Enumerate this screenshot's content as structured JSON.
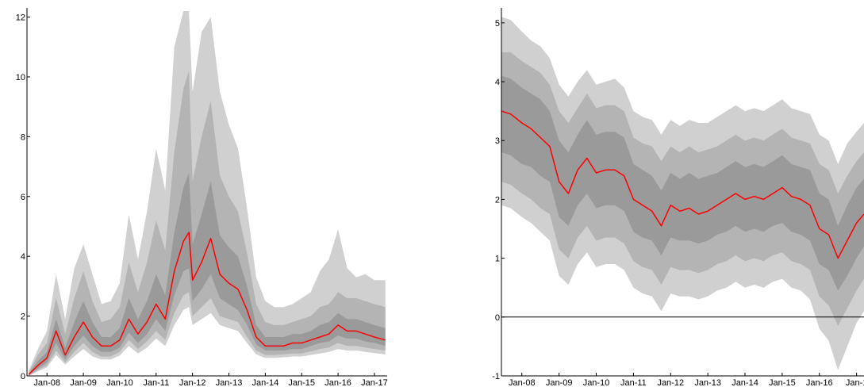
{
  "chart_data": [
    {
      "type": "area",
      "title": "",
      "xlabel": "",
      "ylabel": "",
      "x_tick_labels": [
        "Jan-08",
        "Jan-09",
        "Jan-10",
        "Jan-11",
        "Jan-12",
        "Jan-13",
        "Jan-14",
        "Jan-15",
        "Jan-16",
        "Jan-17"
      ],
      "x_ticks": [
        2008,
        2009,
        2010,
        2011,
        2012,
        2013,
        2014,
        2015,
        2016,
        2017
      ],
      "xlim": [
        2007.45,
        2017.35
      ],
      "ylim": [
        0,
        12.2
      ],
      "y_ticks": [
        0,
        2,
        4,
        6,
        8,
        10,
        12
      ],
      "y_tick_labels": [
        "0",
        "2",
        "4",
        "6",
        "8",
        "10",
        "12"
      ],
      "grid": false,
      "colors": {
        "median": "#ff0000",
        "band_outer": "#d0d0d0",
        "band_mid": "#b4b4b4",
        "band_inner": "#9a9a9a"
      },
      "x": [
        2007.5,
        2007.75,
        2008.0,
        2008.25,
        2008.5,
        2008.75,
        2009.0,
        2009.25,
        2009.5,
        2009.75,
        2010.0,
        2010.25,
        2010.5,
        2010.75,
        2011.0,
        2011.25,
        2011.5,
        2011.75,
        2011.9,
        2012.0,
        2012.25,
        2012.5,
        2012.75,
        2013.0,
        2013.25,
        2013.5,
        2013.75,
        2014.0,
        2014.25,
        2014.5,
        2014.75,
        2015.0,
        2015.25,
        2015.5,
        2015.75,
        2016.0,
        2016.25,
        2016.5,
        2016.75,
        2017.0,
        2017.3
      ],
      "series": [
        {
          "role": "median",
          "values": [
            0.05,
            0.35,
            0.6,
            1.5,
            0.7,
            1.3,
            1.8,
            1.3,
            1.0,
            1.0,
            1.2,
            1.9,
            1.4,
            1.8,
            2.4,
            1.9,
            3.5,
            4.5,
            4.8,
            3.2,
            3.8,
            4.6,
            3.4,
            3.1,
            2.9,
            2.2,
            1.3,
            1.0,
            1.0,
            1.0,
            1.1,
            1.1,
            1.2,
            1.3,
            1.4,
            1.7,
            1.5,
            1.5,
            1.4,
            1.3,
            1.2
          ]
        },
        {
          "role": "band_inner_lower",
          "values": [
            0.02,
            0.25,
            0.45,
            1.1,
            0.55,
            1.0,
            1.35,
            1.0,
            0.8,
            0.8,
            0.95,
            1.45,
            1.1,
            1.4,
            1.9,
            1.5,
            2.7,
            3.5,
            3.6,
            2.5,
            2.9,
            3.4,
            2.6,
            2.4,
            2.2,
            1.7,
            1.05,
            0.85,
            0.85,
            0.85,
            0.9,
            0.9,
            1.0,
            1.1,
            1.15,
            1.35,
            1.25,
            1.25,
            1.15,
            1.1,
            1.0
          ]
        },
        {
          "role": "band_inner_upper",
          "values": [
            0.08,
            0.5,
            0.8,
            1.9,
            0.95,
            1.8,
            2.5,
            1.8,
            1.3,
            1.3,
            1.6,
            2.6,
            1.9,
            2.5,
            3.4,
            2.7,
            4.8,
            6.3,
            6.8,
            4.4,
            5.4,
            6.5,
            4.7,
            4.3,
            4.0,
            3.0,
            1.7,
            1.3,
            1.3,
            1.3,
            1.4,
            1.4,
            1.5,
            1.7,
            1.8,
            2.1,
            1.9,
            1.9,
            1.8,
            1.7,
            1.6
          ]
        },
        {
          "role": "band_mid_lower",
          "values": [
            0.01,
            0.2,
            0.35,
            0.85,
            0.45,
            0.8,
            1.1,
            0.8,
            0.65,
            0.65,
            0.8,
            1.2,
            0.9,
            1.15,
            1.5,
            1.2,
            2.1,
            2.7,
            2.8,
            2.0,
            2.3,
            2.6,
            2.0,
            1.9,
            1.8,
            1.3,
            0.85,
            0.7,
            0.7,
            0.72,
            0.75,
            0.75,
            0.82,
            0.9,
            0.95,
            1.1,
            1.0,
            1.0,
            0.95,
            0.9,
            0.85
          ]
        },
        {
          "role": "band_mid_upper",
          "values": [
            0.12,
            0.7,
            1.1,
            2.6,
            1.4,
            2.6,
            3.5,
            2.5,
            1.8,
            1.9,
            2.3,
            3.8,
            2.8,
            3.8,
            5.2,
            4.2,
            7.5,
            9.6,
            10.2,
            6.5,
            8.0,
            9.2,
            6.7,
            6.0,
            5.5,
            4.1,
            2.4,
            1.8,
            1.7,
            1.7,
            1.8,
            1.9,
            2.0,
            2.3,
            2.4,
            2.8,
            2.6,
            2.6,
            2.5,
            2.4,
            2.3
          ]
        },
        {
          "role": "band_outer_lower",
          "values": [
            0.0,
            0.15,
            0.28,
            0.7,
            0.38,
            0.65,
            0.9,
            0.65,
            0.55,
            0.55,
            0.68,
            1.0,
            0.75,
            0.95,
            1.25,
            1.0,
            1.7,
            2.2,
            2.3,
            1.7,
            1.9,
            2.1,
            1.7,
            1.6,
            1.5,
            1.1,
            0.72,
            0.6,
            0.6,
            0.62,
            0.65,
            0.65,
            0.7,
            0.75,
            0.8,
            0.9,
            0.85,
            0.85,
            0.8,
            0.76,
            0.72
          ]
        },
        {
          "role": "band_outer_upper",
          "values": [
            0.18,
            0.9,
            1.5,
            3.4,
            1.9,
            3.6,
            4.4,
            3.4,
            2.4,
            2.5,
            3.1,
            5.4,
            3.9,
            5.5,
            7.6,
            6.2,
            11.0,
            12.2,
            12.2,
            9.5,
            11.5,
            12.0,
            9.5,
            8.4,
            7.6,
            5.6,
            3.3,
            2.5,
            2.3,
            2.3,
            2.4,
            2.6,
            2.8,
            3.5,
            3.9,
            4.9,
            3.6,
            3.3,
            3.4,
            3.2,
            3.2
          ]
        }
      ]
    },
    {
      "type": "area",
      "title": "",
      "xlabel": "",
      "ylabel": "",
      "x_tick_labels": [
        "Jan-08",
        "Jan-09",
        "Jan-10",
        "Jan-11",
        "Jan-12",
        "Jan-13",
        "Jan-14",
        "Jan-15",
        "Jan-16",
        "Jan-1"
      ],
      "x_ticks": [
        2008,
        2009,
        2010,
        2011,
        2012,
        2013,
        2014,
        2015,
        2016,
        2017
      ],
      "xlim": [
        2007.45,
        2017.2
      ],
      "ylim": [
        -1,
        5.2
      ],
      "y_ticks": [
        -1,
        0,
        1,
        2,
        3,
        4,
        5
      ],
      "y_tick_labels": [
        "-1",
        "0",
        "1",
        "2",
        "3",
        "4",
        "5"
      ],
      "zero_line": true,
      "grid": false,
      "colors": {
        "median": "#ff0000",
        "band_outer": "#d0d0d0",
        "band_mid": "#b4b4b4",
        "band_inner": "#9a9a9a"
      },
      "x": [
        2007.45,
        2007.7,
        2008.0,
        2008.25,
        2008.5,
        2008.75,
        2009.0,
        2009.25,
        2009.5,
        2009.75,
        2010.0,
        2010.25,
        2010.5,
        2010.75,
        2011.0,
        2011.25,
        2011.5,
        2011.75,
        2012.0,
        2012.25,
        2012.5,
        2012.75,
        2013.0,
        2013.25,
        2013.5,
        2013.75,
        2014.0,
        2014.25,
        2014.5,
        2014.75,
        2015.0,
        2015.25,
        2015.5,
        2015.75,
        2016.0,
        2016.25,
        2016.5,
        2016.75,
        2017.0,
        2017.2
      ],
      "series": [
        {
          "role": "median",
          "values": [
            3.5,
            3.45,
            3.3,
            3.2,
            3.05,
            2.9,
            2.3,
            2.1,
            2.5,
            2.7,
            2.45,
            2.5,
            2.5,
            2.4,
            2.0,
            1.9,
            1.8,
            1.55,
            1.9,
            1.8,
            1.85,
            1.75,
            1.8,
            1.9,
            2.0,
            2.1,
            2.0,
            2.05,
            2.0,
            2.1,
            2.2,
            2.05,
            2.0,
            1.9,
            1.5,
            1.4,
            1.0,
            1.3,
            1.6,
            1.75
          ]
        },
        {
          "role": "band_inner_lower",
          "values": [
            2.8,
            2.75,
            2.6,
            2.55,
            2.4,
            2.3,
            1.7,
            1.55,
            1.9,
            2.1,
            1.85,
            1.9,
            1.9,
            1.8,
            1.45,
            1.35,
            1.3,
            1.05,
            1.35,
            1.3,
            1.3,
            1.25,
            1.3,
            1.4,
            1.45,
            1.55,
            1.45,
            1.5,
            1.45,
            1.55,
            1.6,
            1.45,
            1.4,
            1.3,
            0.9,
            0.8,
            0.45,
            0.7,
            1.0,
            1.2
          ]
        },
        {
          "role": "band_inner_upper",
          "values": [
            4.1,
            4.05,
            3.9,
            3.8,
            3.7,
            3.5,
            3.0,
            2.8,
            3.1,
            3.35,
            3.1,
            3.15,
            3.15,
            3.05,
            2.6,
            2.5,
            2.4,
            2.15,
            2.45,
            2.35,
            2.45,
            2.35,
            2.4,
            2.45,
            2.55,
            2.65,
            2.55,
            2.6,
            2.55,
            2.65,
            2.75,
            2.6,
            2.55,
            2.5,
            2.1,
            2.0,
            1.55,
            1.9,
            2.2,
            2.35
          ]
        },
        {
          "role": "band_mid_lower",
          "values": [
            2.3,
            2.25,
            2.1,
            2.0,
            1.85,
            1.75,
            1.15,
            1.0,
            1.35,
            1.55,
            1.3,
            1.35,
            1.35,
            1.25,
            0.95,
            0.85,
            0.8,
            0.55,
            0.85,
            0.8,
            0.8,
            0.75,
            0.8,
            0.9,
            0.95,
            1.05,
            0.95,
            1.0,
            0.95,
            1.05,
            1.1,
            0.95,
            0.9,
            0.8,
            0.35,
            0.2,
            -0.15,
            0.15,
            0.45,
            0.65
          ]
        },
        {
          "role": "band_mid_upper",
          "values": [
            4.5,
            4.5,
            4.35,
            4.25,
            4.15,
            3.95,
            3.5,
            3.3,
            3.55,
            3.8,
            3.55,
            3.6,
            3.6,
            3.5,
            3.05,
            2.95,
            2.9,
            2.65,
            2.9,
            2.8,
            2.9,
            2.8,
            2.85,
            2.9,
            3.0,
            3.1,
            3.0,
            3.05,
            3.0,
            3.1,
            3.2,
            3.05,
            3.0,
            2.95,
            2.6,
            2.5,
            2.1,
            2.4,
            2.65,
            2.8
          ]
        },
        {
          "role": "band_outer_lower",
          "values": [
            1.9,
            1.85,
            1.7,
            1.6,
            1.45,
            1.3,
            0.7,
            0.55,
            0.9,
            1.1,
            0.85,
            0.9,
            0.9,
            0.8,
            0.5,
            0.4,
            0.35,
            0.1,
            0.4,
            0.35,
            0.35,
            0.3,
            0.35,
            0.45,
            0.5,
            0.6,
            0.5,
            0.55,
            0.5,
            0.6,
            0.65,
            0.5,
            0.45,
            0.3,
            -0.2,
            -0.4,
            -0.9,
            -0.5,
            -0.1,
            0.1
          ]
        },
        {
          "role": "band_outer_upper",
          "values": [
            5.1,
            5.05,
            4.85,
            4.7,
            4.6,
            4.4,
            3.95,
            3.75,
            4.0,
            4.2,
            3.95,
            4.0,
            4.05,
            3.9,
            3.5,
            3.4,
            3.35,
            3.1,
            3.35,
            3.25,
            3.35,
            3.3,
            3.3,
            3.4,
            3.5,
            3.6,
            3.5,
            3.55,
            3.5,
            3.6,
            3.7,
            3.55,
            3.5,
            3.45,
            3.1,
            3.0,
            2.6,
            2.95,
            3.15,
            3.3
          ]
        }
      ]
    }
  ]
}
